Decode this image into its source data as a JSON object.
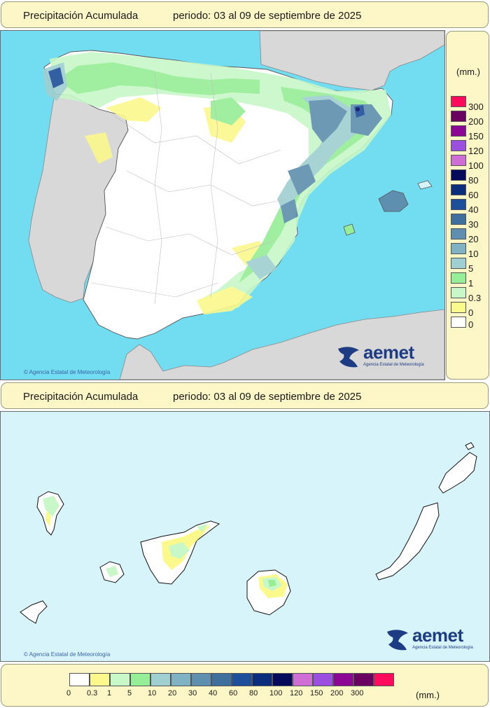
{
  "peninsula_panel": {
    "title": "Precipitación Acumulada",
    "period": "periodo: 03 al 09 de septiembre de 2025",
    "credit": "© Agencia Estatal de Meteorología",
    "logo_word": "aemet",
    "logo_sub": "Agencia Estatal de Meteorología"
  },
  "canarias_panel": {
    "title": "Precipitación Acumulada",
    "period": "periodo: 03 al 09 de septiembre de 2025",
    "credit": "© Agencia Estatal de Meteorología",
    "logo_word": "aemet",
    "logo_sub": "Agencia Estatal de Meteorología"
  },
  "legend": {
    "unit": "(mm.)",
    "classes": [
      {
        "label": "0",
        "color": "#ffffff"
      },
      {
        "label": "0.3",
        "color": "#fbf98c"
      },
      {
        "label": "1",
        "color": "#c8f8c8"
      },
      {
        "label": "5",
        "color": "#96ee96"
      },
      {
        "label": "10",
        "color": "#9fcfd0"
      },
      {
        "label": "20",
        "color": "#7fb3c3"
      },
      {
        "label": "30",
        "color": "#5f8fae"
      },
      {
        "label": "40",
        "color": "#3f6f9d"
      },
      {
        "label": "60",
        "color": "#1e4f9a"
      },
      {
        "label": "80",
        "color": "#0b2e7c"
      },
      {
        "label": "100",
        "color": "#050a5a"
      },
      {
        "label": "120",
        "color": "#cf6fd6"
      },
      {
        "label": "150",
        "color": "#9b4fe0"
      },
      {
        "label": "200",
        "color": "#8c0894"
      },
      {
        "label": "300",
        "color": "#6a0060"
      },
      {
        "label": "",
        "color": "#ff0a5c"
      }
    ]
  },
  "colors": {
    "sea": "#72dcf0",
    "sea_canarias": "#d8f4fb",
    "foreign_land": "#d8d8d8",
    "panel_bg": "#fdf6c6"
  }
}
